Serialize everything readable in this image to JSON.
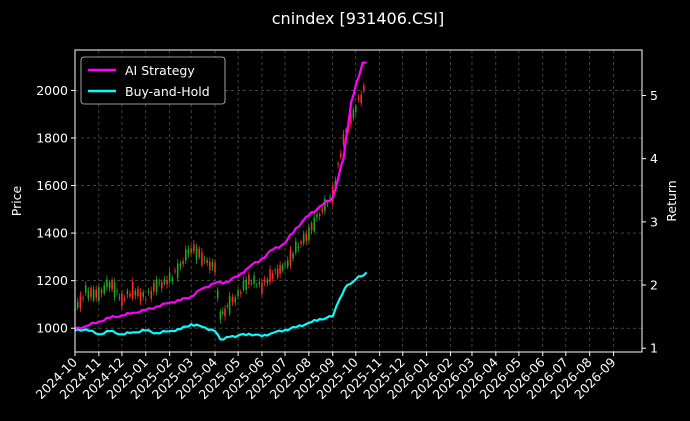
{
  "chart_data": {
    "type": "line",
    "title": "cnindex [931406.CSI]",
    "ylabel_left": "Price",
    "ylabel_right": "Return",
    "ylim_left": [
      900,
      2170
    ],
    "ylim_right": [
      0.94,
      5.72
    ],
    "xlim": [
      "2024-10-01",
      "2026-10-08"
    ],
    "y_ticks_left": [
      1000,
      1200,
      1400,
      1600,
      1800,
      2000
    ],
    "y_ticks_right": [
      1,
      2,
      3,
      4,
      5
    ],
    "x_ticks": [
      "2024-10",
      "2024-11",
      "2024-12",
      "2025-01",
      "2025-02",
      "2025-03",
      "2025-04",
      "2025-05",
      "2025-06",
      "2025-07",
      "2025-08",
      "2025-09",
      "2025-10",
      "2025-11",
      "2025-12",
      "2026-01",
      "2026-02",
      "2026-03",
      "2026-04",
      "2026-05",
      "2026-06",
      "2026-07",
      "2026-08",
      "2026-09"
    ],
    "grid": true,
    "legend_position": "top-left",
    "colors": {
      "background": "#000000",
      "strategy": "#ff00ff",
      "buyhold": "#00ffff",
      "candle_up": "#ff2a2a",
      "candle_down": "#1fa81f"
    },
    "series": [
      {
        "name": "AI Strategy",
        "axis": "right",
        "x": [
          "2024-10-01",
          "2024-10-15",
          "2024-11-01",
          "2024-11-15",
          "2024-12-01",
          "2024-12-15",
          "2025-01-01",
          "2025-01-15",
          "2025-02-01",
          "2025-02-15",
          "2025-03-01",
          "2025-03-15",
          "2025-04-01",
          "2025-04-15",
          "2025-05-01",
          "2025-05-15",
          "2025-06-01",
          "2025-06-15",
          "2025-07-01",
          "2025-07-15",
          "2025-08-01",
          "2025-08-15",
          "2025-09-01",
          "2025-09-15",
          "2025-09-25",
          "2025-10-05",
          "2025-10-10",
          "2025-10-15"
        ],
        "values": [
          1.3,
          1.35,
          1.42,
          1.48,
          1.52,
          1.56,
          1.6,
          1.66,
          1.72,
          1.76,
          1.82,
          1.94,
          2.03,
          2.05,
          2.14,
          2.28,
          2.42,
          2.56,
          2.66,
          2.9,
          3.1,
          3.24,
          3.38,
          4.0,
          4.9,
          5.3,
          5.52,
          5.52
        ]
      },
      {
        "name": "Buy-and-Hold",
        "axis": "right",
        "x": [
          "2024-10-01",
          "2024-10-15",
          "2024-11-01",
          "2024-11-15",
          "2024-12-01",
          "2024-12-15",
          "2025-01-01",
          "2025-01-15",
          "2025-02-01",
          "2025-02-15",
          "2025-03-01",
          "2025-03-15",
          "2025-04-01",
          "2025-04-08",
          "2025-04-20",
          "2025-05-01",
          "2025-05-15",
          "2025-06-01",
          "2025-06-15",
          "2025-07-01",
          "2025-07-15",
          "2025-08-01",
          "2025-08-15",
          "2025-09-01",
          "2025-09-10",
          "2025-09-20",
          "2025-10-01",
          "2025-10-15"
        ],
        "values": [
          1.28,
          1.3,
          1.22,
          1.27,
          1.22,
          1.25,
          1.28,
          1.24,
          1.27,
          1.3,
          1.38,
          1.34,
          1.27,
          1.14,
          1.18,
          1.2,
          1.23,
          1.19,
          1.24,
          1.29,
          1.33,
          1.4,
          1.46,
          1.5,
          1.78,
          2.0,
          2.09,
          2.2
        ]
      },
      {
        "name": "cnindex [931406.CSI]",
        "axis": "left",
        "style": "candlestick",
        "x": [
          "2024-10-01",
          "2024-10-15",
          "2024-11-01",
          "2024-11-15",
          "2024-12-01",
          "2024-12-15",
          "2025-01-01",
          "2025-01-15",
          "2025-02-01",
          "2025-02-15",
          "2025-03-01",
          "2025-03-15",
          "2025-04-01",
          "2025-04-08",
          "2025-04-20",
          "2025-05-01",
          "2025-05-15",
          "2025-06-01",
          "2025-06-15",
          "2025-07-01",
          "2025-07-15",
          "2025-08-01",
          "2025-08-15",
          "2025-09-01",
          "2025-09-15",
          "2025-10-01",
          "2025-10-15"
        ],
        "values": [
          1080,
          1150,
          1140,
          1190,
          1120,
          1160,
          1130,
          1180,
          1200,
          1260,
          1340,
          1300,
          1250,
          1050,
          1100,
          1140,
          1200,
          1180,
          1230,
          1260,
          1330,
          1400,
          1480,
          1560,
          1800,
          1930,
          2030
        ]
      }
    ]
  }
}
